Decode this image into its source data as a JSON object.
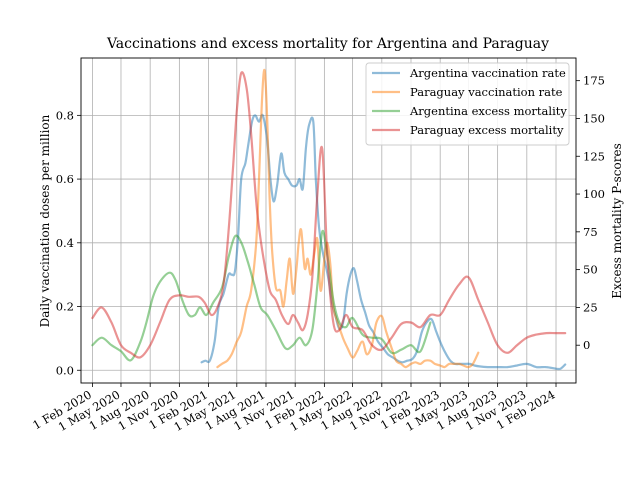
{
  "chart_data": {
    "type": "line",
    "title": "Vaccinations and excess mortality for Argentina and Paraguay",
    "ylabel": "Daily vaccination doses per million",
    "y2label": "Excess mortality P-scores",
    "xlabel": "",
    "grid": true,
    "legend_position": "top-right",
    "x_tick_labels": [
      "1 Feb 2020",
      "1 May 2020",
      "1 Aug 2020",
      "1 Nov 2020",
      "1 Feb 2021",
      "1 May 2021",
      "1 Aug 2021",
      "1 Nov 2021",
      "1 Feb 2022",
      "1 May 2022",
      "1 Aug 2022",
      "1 Nov 2022",
      "1 Feb 2023",
      "1 May 2023",
      "1 Aug 2023",
      "1 Nov 2023",
      "1 Feb 2024"
    ],
    "x_tick_dates": [
      "2020-02-01",
      "2020-05-01",
      "2020-08-01",
      "2020-11-01",
      "2021-02-01",
      "2021-05-01",
      "2021-08-01",
      "2021-11-01",
      "2022-02-01",
      "2022-05-01",
      "2022-08-01",
      "2022-11-01",
      "2023-02-01",
      "2023-05-01",
      "2023-08-01",
      "2023-11-01",
      "2024-02-01"
    ],
    "xlim": [
      "2019-12-27",
      "2024-04-04"
    ],
    "ylim": [
      -0.04,
      0.98
    ],
    "y2lim": [
      -25,
      190
    ],
    "y_ticks": [
      0.0,
      0.2,
      0.4,
      0.6,
      0.8
    ],
    "y_tick_labels": [
      "0.0",
      "0.2",
      "0.4",
      "0.6",
      "0.8"
    ],
    "y2_ticks": [
      0,
      25,
      50,
      75,
      100,
      125,
      150,
      175
    ],
    "y2_tick_labels": [
      "0",
      "25",
      "50",
      "75",
      "100",
      "125",
      "150",
      "175"
    ],
    "series": [
      {
        "name": "Argentina vaccination rate",
        "axis": "left",
        "color": "#1f77b4",
        "x": [
          "2021-01-10",
          "2021-01-22",
          "2021-02-05",
          "2021-02-20",
          "2021-03-05",
          "2021-03-20",
          "2021-04-05",
          "2021-04-15",
          "2021-04-25",
          "2021-05-05",
          "2021-05-15",
          "2021-05-28",
          "2021-06-05",
          "2021-06-18",
          "2021-06-28",
          "2021-07-10",
          "2021-07-22",
          "2021-08-05",
          "2021-08-15",
          "2021-08-25",
          "2021-09-05",
          "2021-09-18",
          "2021-09-28",
          "2021-10-10",
          "2021-10-22",
          "2021-11-05",
          "2021-11-15",
          "2021-11-25",
          "2021-12-05",
          "2021-12-15",
          "2021-12-28",
          "2022-01-05",
          "2022-01-15",
          "2022-01-25",
          "2022-02-05",
          "2022-02-15",
          "2022-02-25",
          "2022-03-08",
          "2022-03-20",
          "2022-04-01",
          "2022-04-12",
          "2022-04-24",
          "2022-05-05",
          "2022-05-15",
          "2022-05-28",
          "2022-06-10",
          "2022-06-22",
          "2022-07-05",
          "2022-07-20",
          "2022-08-05",
          "2022-08-20",
          "2022-09-05",
          "2022-09-20",
          "2022-10-05",
          "2022-10-20",
          "2022-11-05",
          "2022-11-20",
          "2022-12-05",
          "2022-12-20",
          "2023-01-05",
          "2023-01-20",
          "2023-02-05",
          "2023-02-20",
          "2023-03-05",
          "2023-03-20",
          "2023-04-05",
          "2023-04-20",
          "2023-05-05",
          "2023-05-20",
          "2023-06-05",
          "2023-07-01",
          "2023-08-01",
          "2023-09-01",
          "2023-10-01",
          "2023-11-01",
          "2023-12-01",
          "2024-01-01",
          "2024-02-01",
          "2024-02-15",
          "2024-03-01"
        ],
        "values": [
          0.025,
          0.03,
          0.03,
          0.09,
          0.2,
          0.24,
          0.3,
          0.3,
          0.31,
          0.42,
          0.6,
          0.65,
          0.7,
          0.78,
          0.8,
          0.78,
          0.8,
          0.72,
          0.6,
          0.53,
          0.58,
          0.68,
          0.62,
          0.6,
          0.58,
          0.58,
          0.6,
          0.57,
          0.7,
          0.77,
          0.78,
          0.6,
          0.45,
          0.38,
          0.33,
          0.28,
          0.21,
          0.17,
          0.13,
          0.15,
          0.24,
          0.3,
          0.32,
          0.28,
          0.22,
          0.18,
          0.14,
          0.12,
          0.09,
          0.07,
          0.05,
          0.04,
          0.03,
          0.025,
          0.03,
          0.035,
          0.06,
          0.12,
          0.15,
          0.16,
          0.12,
          0.08,
          0.05,
          0.03,
          0.02,
          0.02,
          0.02,
          0.02,
          0.015,
          0.012,
          0.01,
          0.01,
          0.01,
          0.015,
          0.02,
          0.01,
          0.01,
          0.005,
          0.005,
          0.018
        ]
      },
      {
        "name": "Paraguay vaccination rate",
        "axis": "left",
        "color": "#ff7f0e",
        "x": [
          "2021-03-01",
          "2021-03-15",
          "2021-04-01",
          "2021-04-15",
          "2021-05-01",
          "2021-05-15",
          "2021-06-01",
          "2021-06-15",
          "2021-07-01",
          "2021-07-10",
          "2021-07-20",
          "2021-07-28",
          "2021-08-05",
          "2021-08-12",
          "2021-08-20",
          "2021-09-01",
          "2021-09-15",
          "2021-09-25",
          "2021-10-05",
          "2021-10-15",
          "2021-10-25",
          "2021-11-05",
          "2021-11-12",
          "2021-11-20",
          "2021-12-01",
          "2021-12-10",
          "2021-12-20",
          "2022-01-01",
          "2022-01-10",
          "2022-01-20",
          "2022-02-01",
          "2022-02-10",
          "2022-02-20",
          "2022-03-01",
          "2022-03-15",
          "2022-04-01",
          "2022-04-15",
          "2022-05-01",
          "2022-05-15",
          "2022-06-01",
          "2022-06-15",
          "2022-07-01",
          "2022-07-15",
          "2022-08-01",
          "2022-08-15",
          "2022-09-01",
          "2022-09-15",
          "2022-10-01",
          "2022-10-15",
          "2022-11-01",
          "2022-11-15",
          "2022-12-01",
          "2022-12-15",
          "2023-01-01",
          "2023-01-15",
          "2023-02-01",
          "2023-02-15",
          "2023-03-01",
          "2023-03-15",
          "2023-04-01",
          "2023-04-15",
          "2023-05-01",
          "2023-05-15",
          "2023-06-01"
        ],
        "values": [
          0.01,
          0.02,
          0.03,
          0.05,
          0.09,
          0.12,
          0.2,
          0.25,
          0.4,
          0.6,
          0.86,
          0.94,
          0.78,
          0.55,
          0.38,
          0.26,
          0.25,
          0.2,
          0.28,
          0.35,
          0.24,
          0.32,
          0.4,
          0.44,
          0.32,
          0.35,
          0.3,
          0.37,
          0.41,
          0.25,
          0.35,
          0.4,
          0.33,
          0.2,
          0.15,
          0.1,
          0.07,
          0.04,
          0.06,
          0.09,
          0.05,
          0.08,
          0.15,
          0.17,
          0.12,
          0.07,
          0.03,
          0.02,
          0.01,
          0.02,
          0.025,
          0.02,
          0.03,
          0.03,
          0.02,
          0.015,
          0.01,
          0.02,
          0.02,
          0.02,
          0.015,
          0.01,
          0.02,
          0.055
        ]
      },
      {
        "name": "Argentina excess mortality",
        "axis": "right",
        "color": "#2ca02c",
        "x": [
          "2020-02-01",
          "2020-03-01",
          "2020-04-01",
          "2020-05-01",
          "2020-06-01",
          "2020-07-01",
          "2020-07-20",
          "2020-08-10",
          "2020-09-01",
          "2020-10-01",
          "2020-10-20",
          "2020-11-10",
          "2020-12-01",
          "2020-12-20",
          "2021-01-05",
          "2021-01-25",
          "2021-02-15",
          "2021-03-15",
          "2021-04-05",
          "2021-04-25",
          "2021-05-15",
          "2021-06-05",
          "2021-06-25",
          "2021-07-15",
          "2021-08-05",
          "2021-09-01",
          "2021-10-01",
          "2021-10-25",
          "2021-11-15",
          "2021-12-05",
          "2021-12-25",
          "2022-01-10",
          "2022-01-25",
          "2022-02-10",
          "2022-03-01",
          "2022-03-20",
          "2022-04-10",
          "2022-05-01",
          "2022-06-01",
          "2022-07-01",
          "2022-08-01",
          "2022-09-01",
          "2022-10-01",
          "2022-11-01",
          "2022-12-01",
          "2023-01-01"
        ],
        "values": [
          0,
          5,
          0,
          -4,
          -10,
          2,
          15,
          32,
          42,
          48,
          43,
          30,
          20,
          20,
          25,
          20,
          28,
          38,
          58,
          72,
          68,
          55,
          40,
          25,
          20,
          10,
          -2,
          0,
          5,
          0,
          10,
          40,
          75,
          60,
          30,
          15,
          12,
          18,
          7,
          5,
          4,
          -5,
          -3,
          0,
          -4,
          15
        ]
      },
      {
        "name": "Paraguay excess mortality",
        "axis": "right",
        "color": "#d62728",
        "x": [
          "2020-02-01",
          "2020-03-01",
          "2020-04-01",
          "2020-05-01",
          "2020-06-01",
          "2020-07-01",
          "2020-08-01",
          "2020-09-01",
          "2020-10-01",
          "2020-11-01",
          "2020-12-01",
          "2021-01-01",
          "2021-01-20",
          "2021-02-10",
          "2021-03-01",
          "2021-03-20",
          "2021-04-05",
          "2021-04-20",
          "2021-05-01",
          "2021-05-15",
          "2021-06-01",
          "2021-06-15",
          "2021-07-01",
          "2021-07-15",
          "2021-08-01",
          "2021-08-15",
          "2021-09-01",
          "2021-09-20",
          "2021-10-10",
          "2021-10-25",
          "2021-11-10",
          "2021-11-25",
          "2021-12-10",
          "2021-12-25",
          "2022-01-10",
          "2022-01-25",
          "2022-02-10",
          "2022-03-01",
          "2022-03-20",
          "2022-04-10",
          "2022-05-01",
          "2022-06-01",
          "2022-07-01",
          "2022-08-01",
          "2022-09-01",
          "2022-10-01",
          "2022-11-01",
          "2022-12-01",
          "2023-01-01",
          "2023-02-01",
          "2023-03-01",
          "2023-04-01",
          "2023-05-01",
          "2023-06-01",
          "2023-07-01",
          "2023-08-01",
          "2023-09-01",
          "2023-10-01",
          "2023-11-01",
          "2023-12-01",
          "2024-01-01",
          "2024-02-01",
          "2024-03-01"
        ],
        "values": [
          18,
          25,
          15,
          0,
          -5,
          -8,
          0,
          15,
          30,
          33,
          32,
          32,
          28,
          20,
          25,
          40,
          75,
          120,
          155,
          180,
          170,
          140,
          95,
          70,
          48,
          35,
          30,
          20,
          14,
          20,
          15,
          10,
          20,
          45,
          100,
          130,
          60,
          15,
          10,
          20,
          12,
          10,
          0,
          -3,
          5,
          14,
          15,
          12,
          20,
          20,
          30,
          40,
          45,
          30,
          15,
          0,
          -5,
          0,
          5,
          7,
          8,
          8,
          8
        ]
      }
    ]
  }
}
